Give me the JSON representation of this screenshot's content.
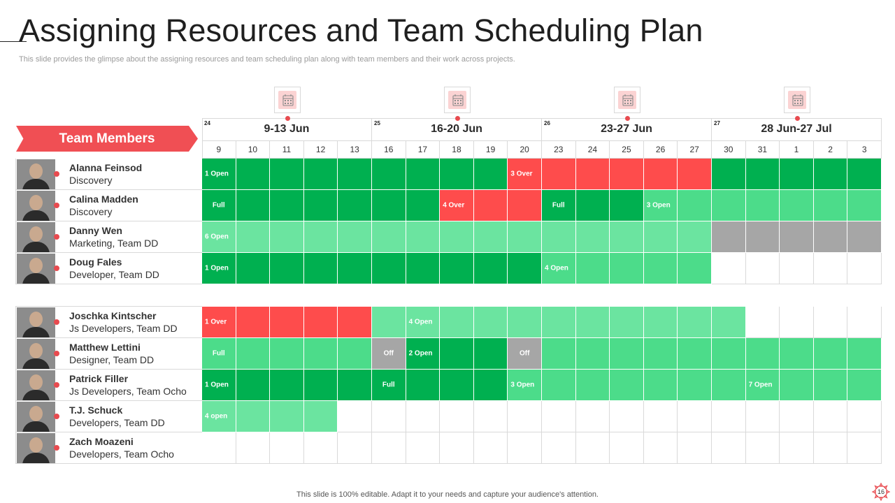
{
  "title": "Assigning Resources and Team Scheduling Plan",
  "subtitle": "This slide provides the glimpse about the assigning resources and team scheduling plan along with team members and their work across projects.",
  "team_header": "Team Members",
  "colors": {
    "accent": "#f04f54",
    "dark_green": "#00b050",
    "mid_green": "#4cdc8a",
    "light_green": "#6be4a0",
    "over_red": "#fe4c4c",
    "off_gray": "#a6a6a6"
  },
  "weeks": [
    {
      "num": "24",
      "label": "9-13 Jun",
      "days": [
        "9",
        "10",
        "11",
        "12",
        "13"
      ]
    },
    {
      "num": "25",
      "label": "16-20 Jun",
      "days": [
        "16",
        "17",
        "18",
        "19",
        "20"
      ]
    },
    {
      "num": "26",
      "label": "23-27 Jun",
      "days": [
        "23",
        "24",
        "25",
        "26",
        "27"
      ]
    },
    {
      "num": "27",
      "label": "28 Jun-27 Jul",
      "days": [
        "30",
        "31",
        "1",
        "2",
        "3"
      ]
    }
  ],
  "groups": [
    {
      "members": [
        {
          "name": "Alanna Feinsod",
          "role": "Discovery",
          "cells": [
            "D",
            "D",
            "D",
            "D",
            "D",
            "D",
            "D",
            "D",
            "D",
            "R",
            "R",
            "R",
            "R",
            "R",
            "R",
            "D",
            "D",
            "D",
            "D",
            "D"
          ],
          "labels": [
            {
              "col": 0,
              "text": "1 Open"
            },
            {
              "col": 9,
              "text": "3 Over"
            }
          ]
        },
        {
          "name": "Calina Madden",
          "role": "Discovery",
          "cells": [
            "D",
            "D",
            "D",
            "D",
            "D",
            "D",
            "D",
            "R",
            "R",
            "R",
            "D",
            "D",
            "D",
            "M",
            "M",
            "M",
            "M",
            "M",
            "M",
            "M"
          ],
          "labels": [
            {
              "col": 0,
              "text": "Full"
            },
            {
              "col": 7,
              "text": "4 Over"
            },
            {
              "col": 10,
              "text": "Full"
            },
            {
              "col": 13,
              "text": "3 Open"
            }
          ]
        },
        {
          "name": "Danny Wen",
          "role": "Marketing,  Team DD",
          "cells": [
            "L",
            "L",
            "L",
            "L",
            "L",
            "L",
            "L",
            "L",
            "L",
            "L",
            "L",
            "L",
            "L",
            "L",
            "L",
            "G",
            "G",
            "G",
            "G",
            "G"
          ],
          "labels": [
            {
              "col": 0,
              "text": "6 Open"
            }
          ]
        },
        {
          "name": "Doug Fales",
          "role": "Developer,  Team DD",
          "cells": [
            "D",
            "D",
            "D",
            "D",
            "D",
            "D",
            "D",
            "D",
            "D",
            "D",
            "M",
            "M",
            "M",
            "M",
            "M",
            "W",
            "W",
            "W",
            "W",
            "W"
          ],
          "labels": [
            {
              "col": 0,
              "text": "1 Open"
            },
            {
              "col": 10,
              "text": "4 Open"
            }
          ]
        }
      ]
    },
    {
      "members": [
        {
          "name": "Joschka Kintscher",
          "role": "Js Developers, Team DD",
          "cells": [
            "R",
            "R",
            "R",
            "R",
            "R",
            "L",
            "L",
            "L",
            "L",
            "L",
            "L",
            "L",
            "L",
            "L",
            "L",
            "L",
            "W",
            "W",
            "W",
            "W"
          ],
          "labels": [
            {
              "col": 0,
              "text": "1 Over"
            },
            {
              "col": 6,
              "text": "4 Open"
            }
          ]
        },
        {
          "name": "Matthew Lettini",
          "role": "Designer, Team DD",
          "cells": [
            "M",
            "M",
            "M",
            "M",
            "M",
            "G",
            "D",
            "D",
            "D",
            "G",
            "M",
            "M",
            "M",
            "M",
            "M",
            "M",
            "M",
            "M",
            "M",
            "M"
          ],
          "labels": [
            {
              "col": 0,
              "text": "Full"
            },
            {
              "col": 5,
              "text": "Off"
            },
            {
              "col": 6,
              "text": "2 Open"
            },
            {
              "col": 9,
              "text": "Off"
            }
          ]
        },
        {
          "name": "Patrick Filler",
          "role": "Js Developers, Team Ocho",
          "cells": [
            "D",
            "D",
            "D",
            "D",
            "D",
            "D",
            "D",
            "D",
            "D",
            "M",
            "M",
            "M",
            "M",
            "M",
            "M",
            "M",
            "M",
            "M",
            "M",
            "M"
          ],
          "labels": [
            {
              "col": 0,
              "text": "1 Open"
            },
            {
              "col": 5,
              "text": "Full"
            },
            {
              "col": 9,
              "text": "3 Open"
            },
            {
              "col": 16,
              "text": "7 Open"
            }
          ]
        },
        {
          "name": "T.J. Schuck",
          "role": "Developers, Team DD",
          "cells": [
            "L",
            "L",
            "L",
            "L",
            "W",
            "W",
            "W",
            "W",
            "W",
            "W",
            "W",
            "W",
            "W",
            "W",
            "W",
            "W",
            "W",
            "W",
            "W",
            "W"
          ],
          "labels": [
            {
              "col": 0,
              "text": "4 open"
            }
          ]
        },
        {
          "name": "Zach Moazeni",
          "role": "Developers, Team Ocho",
          "cells": [
            "W",
            "W",
            "W",
            "W",
            "W",
            "W",
            "W",
            "W",
            "W",
            "W",
            "W",
            "W",
            "W",
            "W",
            "W",
            "W",
            "W",
            "W",
            "W",
            "W"
          ],
          "labels": []
        }
      ]
    }
  ],
  "footer": "This slide is 100% editable. Adapt it to your needs and capture your audience's attention.",
  "page_number": "16"
}
